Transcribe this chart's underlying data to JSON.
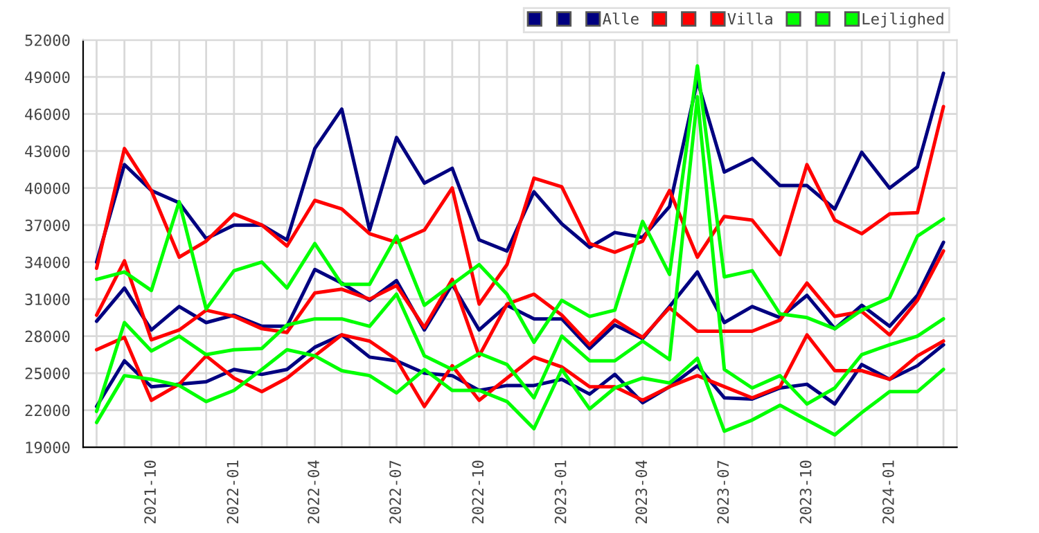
{
  "chart_data": {
    "type": "line",
    "x": [
      "2021-08",
      "2021-09",
      "2021-10",
      "2021-11",
      "2021-12",
      "2022-01",
      "2022-02",
      "2022-03",
      "2022-04",
      "2022-05",
      "2022-06",
      "2022-07",
      "2022-08",
      "2022-09",
      "2022-10",
      "2022-11",
      "2022-12",
      "2023-01",
      "2023-02",
      "2023-03",
      "2023-04",
      "2023-05",
      "2023-06",
      "2023-07",
      "2023-08",
      "2023-09",
      "2023-10",
      "2023-11",
      "2023-12",
      "2024-01",
      "2024-02",
      "2024-03"
    ],
    "series": [
      {
        "color": "#000080",
        "values": [
          34000,
          41900,
          39800,
          38800,
          35900,
          37000,
          37000,
          35800,
          43200,
          46400,
          36600,
          44100,
          40400,
          41600,
          35800,
          34900,
          39700,
          37100,
          35200,
          36400,
          36000,
          38500,
          48700,
          41300,
          42400,
          40200,
          40200,
          38300,
          42900,
          40000,
          41700,
          49300
        ]
      },
      {
        "color": "#000080",
        "values": [
          29200,
          31900,
          28500,
          30400,
          29100,
          29700,
          28800,
          28800,
          33400,
          32300,
          30900,
          32500,
          28500,
          32200,
          28500,
          30500,
          29400,
          29400,
          27000,
          28900,
          27800,
          30400,
          33200,
          29100,
          30400,
          29500,
          31300,
          28600,
          30500,
          28800,
          31300,
          35600
        ]
      },
      {
        "name": "Alle",
        "color": "#000080",
        "values": [
          22300,
          26000,
          23900,
          24100,
          24300,
          25300,
          24900,
          25300,
          27100,
          28100,
          26300,
          26000,
          25000,
          24800,
          23600,
          24000,
          24000,
          24500,
          23300,
          24900,
          22600,
          23900,
          25600,
          23000,
          22900,
          23800,
          24100,
          22500,
          25700,
          24500,
          25600,
          27300
        ]
      },
      {
        "color": "#ff0000",
        "values": [
          33500,
          43200,
          39800,
          34400,
          35700,
          37900,
          37000,
          35300,
          39000,
          38300,
          36300,
          35600,
          36600,
          40000,
          30600,
          33800,
          40800,
          40100,
          35500,
          34800,
          35700,
          39800,
          34400,
          37700,
          37400,
          34600,
          41900,
          37400,
          36300,
          37900,
          38000,
          46600
        ]
      },
      {
        "color": "#ff0000",
        "values": [
          29700,
          34100,
          27700,
          28500,
          30100,
          29600,
          28600,
          28300,
          31500,
          31800,
          31000,
          32100,
          28700,
          32600,
          26400,
          30600,
          31400,
          29700,
          27300,
          29300,
          27900,
          30300,
          28400,
          28400,
          28400,
          29300,
          32300,
          29600,
          30000,
          28100,
          30900,
          34900
        ]
      },
      {
        "name": "Villa",
        "color": "#ff0000",
        "values": [
          26900,
          27900,
          22800,
          24100,
          26400,
          24600,
          23500,
          24600,
          26400,
          28100,
          27600,
          26100,
          22300,
          25600,
          22800,
          24600,
          26300,
          25500,
          23900,
          23900,
          22800,
          23900,
          24800,
          23900,
          23000,
          23900,
          28100,
          25200,
          25200,
          24500,
          26400,
          27600
        ]
      },
      {
        "color": "#00ff00",
        "values": [
          32600,
          33200,
          31700,
          38900,
          30200,
          33300,
          34000,
          31900,
          35500,
          32200,
          32200,
          36100,
          30500,
          32200,
          33800,
          31400,
          27500,
          30900,
          29600,
          30100,
          37300,
          33000,
          49900,
          32800,
          33300,
          29800,
          29500,
          28600,
          30100,
          31100,
          36100,
          37500
        ]
      },
      {
        "color": "#00ff00",
        "values": [
          21900,
          29100,
          26800,
          28000,
          26500,
          26900,
          27000,
          28900,
          29400,
          29400,
          28800,
          31400,
          26400,
          25300,
          26600,
          25700,
          23000,
          28000,
          26000,
          26000,
          27600,
          26100,
          47400,
          25300,
          23800,
          24800,
          22500,
          23800,
          26500,
          27300,
          28000,
          29400
        ]
      },
      {
        "name": "Lejlighed",
        "color": "#00ff00",
        "values": [
          21000,
          24800,
          24500,
          24000,
          22700,
          23600,
          25300,
          26900,
          26400,
          25200,
          24800,
          23400,
          25300,
          23600,
          23600,
          22700,
          20500,
          25300,
          22100,
          23800,
          24600,
          24200,
          26200,
          20300,
          21200,
          22400,
          21200,
          20000,
          21800,
          23500,
          23500,
          25300
        ]
      }
    ],
    "xlim": [
      "2021-07-17",
      "2024-03-16"
    ],
    "xticks": [
      {
        "value": "2021-08",
        "label": null
      },
      {
        "value": "2021-09",
        "label": null
      },
      "2021-10",
      {
        "value": "2021-11",
        "label": null
      },
      {
        "value": "2021-12",
        "label": null
      },
      "2022-01",
      {
        "value": "2022-02",
        "label": null
      },
      {
        "value": "2022-03",
        "label": null
      },
      "2022-04",
      {
        "value": "2022-05",
        "label": null
      },
      {
        "value": "2022-06",
        "label": null
      },
      "2022-07",
      {
        "value": "2022-08",
        "label": null
      },
      {
        "value": "2022-09",
        "label": null
      },
      "2022-10",
      {
        "value": "2022-11",
        "label": null
      },
      {
        "value": "2022-12",
        "label": null
      },
      "2023-01",
      {
        "value": "2023-02",
        "label": null
      },
      {
        "value": "2023-03",
        "label": null
      },
      "2023-04",
      {
        "value": "2023-05",
        "label": null
      },
      {
        "value": "2023-06",
        "label": null
      },
      "2023-07",
      {
        "value": "2023-08",
        "label": null
      },
      {
        "value": "2023-09",
        "label": null
      },
      "2023-10",
      {
        "value": "2023-11",
        "label": null
      },
      {
        "value": "2023-12",
        "label": null
      },
      "2024-01",
      {
        "value": "2024-02",
        "label": null
      },
      {
        "value": "2024-03",
        "label": null
      }
    ],
    "ylim": [
      19000,
      52000
    ],
    "yticks": [
      19000,
      22000,
      25000,
      28000,
      31000,
      34000,
      37000,
      40000,
      43000,
      46000,
      49000,
      52000
    ],
    "grid": true,
    "legend": "top right"
  }
}
